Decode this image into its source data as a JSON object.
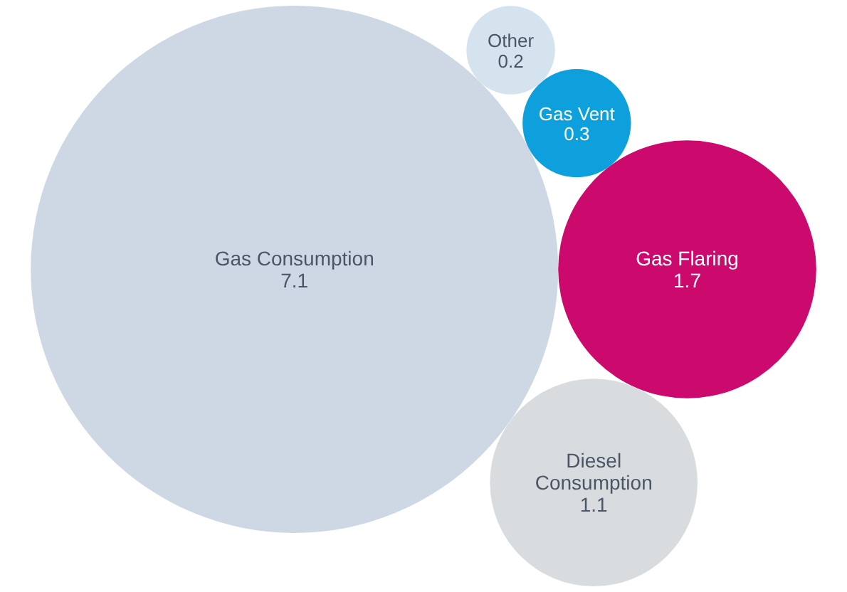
{
  "chart_data": {
    "type": "other",
    "categories": [
      "Gas Consumption",
      "Gas Flaring",
      "Diesel Consumption",
      "Gas Vent",
      "Other"
    ],
    "values": [
      7.1,
      1.7,
      1.1,
      0.3,
      0.2
    ],
    "colors": [
      "#cdd8e4",
      "#cc0a6e",
      "#d9dcdf",
      "#0ea0dc",
      "#d5e3ee"
    ],
    "data_labels": true
  }
}
